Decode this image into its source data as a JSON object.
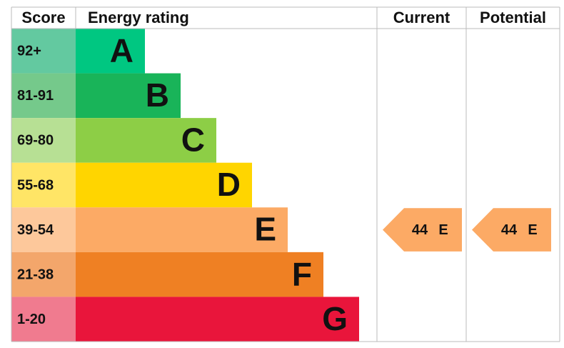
{
  "header": {
    "score": "Score",
    "rating": "Energy rating",
    "current": "Current",
    "potential": "Potential"
  },
  "bands": [
    {
      "score": "92+",
      "letter": "A",
      "color": "#00c781",
      "score_color": "#63c9a0"
    },
    {
      "score": "81-91",
      "letter": "B",
      "color": "#19b459",
      "score_color": "#75c98b"
    },
    {
      "score": "69-80",
      "letter": "C",
      "color": "#8dce46",
      "score_color": "#b7e094"
    },
    {
      "score": "55-68",
      "letter": "D",
      "color": "#ffd500",
      "score_color": "#ffe566"
    },
    {
      "score": "39-54",
      "letter": "E",
      "color": "#fcaa65",
      "score_color": "#fdc89b"
    },
    {
      "score": "21-38",
      "letter": "F",
      "color": "#ef8023",
      "score_color": "#f3a66b"
    },
    {
      "score": "1-20",
      "letter": "G",
      "color": "#e9153b",
      "score_color": "#f07b8f"
    }
  ],
  "current": {
    "value": 44,
    "rating": "E"
  },
  "potential": {
    "value": 44,
    "rating": "E"
  }
}
